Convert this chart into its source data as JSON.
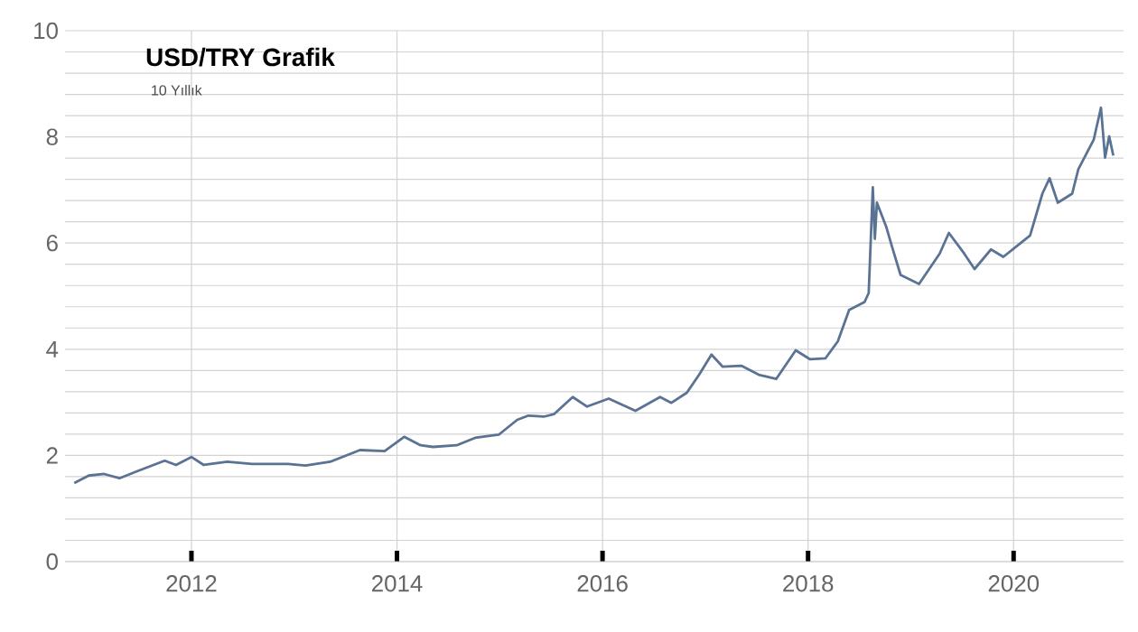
{
  "chart_data": {
    "type": "line",
    "title": "USD/TRY Grafik",
    "subtitle": "10 Yıllık",
    "x": [
      2010.86,
      2011.0,
      2011.15,
      2011.3,
      2011.47,
      2011.74,
      2011.85,
      2012.0,
      2012.12,
      2012.35,
      2012.59,
      2012.94,
      2013.11,
      2013.35,
      2013.64,
      2013.88,
      2014.07,
      2014.23,
      2014.35,
      2014.58,
      2014.76,
      2014.99,
      2015.17,
      2015.28,
      2015.43,
      2015.53,
      2015.71,
      2015.85,
      2016.06,
      2016.32,
      2016.56,
      2016.67,
      2016.82,
      2016.94,
      2017.06,
      2017.17,
      2017.35,
      2017.52,
      2017.69,
      2017.88,
      2018.02,
      2018.17,
      2018.29,
      2018.4,
      2018.55,
      2018.59,
      2018.63,
      2018.65,
      2018.67,
      2018.76,
      2018.82,
      2018.9,
      2019.08,
      2019.28,
      2019.37,
      2019.52,
      2019.62,
      2019.78,
      2019.9,
      2020.05,
      2020.16,
      2020.28,
      2020.35,
      2020.43,
      2020.57,
      2020.63,
      2020.78,
      2020.85,
      2020.89,
      2020.93,
      2020.97
    ],
    "series": [
      {
        "color": "#5a7394",
        "values": [
          1.48,
          1.62,
          1.65,
          1.57,
          1.7,
          1.9,
          1.82,
          1.97,
          1.82,
          1.88,
          1.84,
          1.84,
          1.81,
          1.88,
          2.1,
          2.08,
          2.35,
          2.19,
          2.16,
          2.19,
          2.33,
          2.39,
          2.67,
          2.75,
          2.73,
          2.78,
          3.1,
          2.92,
          3.07,
          2.84,
          3.1,
          2.99,
          3.18,
          3.52,
          3.9,
          3.67,
          3.69,
          3.52,
          3.44,
          3.98,
          3.81,
          3.83,
          4.15,
          4.74,
          4.89,
          5.06,
          7.05,
          6.08,
          6.76,
          6.31,
          5.91,
          5.4,
          5.23,
          5.8,
          6.19,
          5.8,
          5.51,
          5.88,
          5.74,
          5.97,
          6.14,
          6.93,
          7.22,
          6.76,
          6.93,
          7.39,
          7.95,
          8.55,
          7.61,
          8.01,
          7.65
        ]
      }
    ],
    "xlim": [
      2010.77,
      2021.07
    ],
    "ylim": [
      0,
      10
    ],
    "xticks": [
      2012,
      2014,
      2016,
      2018,
      2020
    ],
    "yticks": [
      0,
      {
        "value": 0.4,
        "label": null
      },
      {
        "value": 0.8,
        "label": null
      },
      {
        "value": 1.2,
        "label": null
      },
      {
        "value": 1.6,
        "label": null
      },
      2,
      {
        "value": 2.4,
        "label": null
      },
      {
        "value": 2.8,
        "label": null
      },
      {
        "value": 3.2,
        "label": null
      },
      {
        "value": 3.6,
        "label": null
      },
      4,
      {
        "value": 4.4,
        "label": null
      },
      {
        "value": 4.8,
        "label": null
      },
      {
        "value": 5.2,
        "label": null
      },
      {
        "value": 5.6,
        "label": null
      },
      6,
      {
        "value": 6.4,
        "label": null
      },
      {
        "value": 6.8,
        "label": null
      },
      {
        "value": 7.2,
        "label": null
      },
      {
        "value": 7.6,
        "label": null
      },
      8,
      {
        "value": 8.4,
        "label": null
      },
      {
        "value": 8.8,
        "label": null
      },
      {
        "value": 9.2,
        "label": null
      },
      {
        "value": 9.6,
        "label": null
      },
      10
    ],
    "grid": true,
    "marker": "none",
    "line_style": "solid"
  }
}
